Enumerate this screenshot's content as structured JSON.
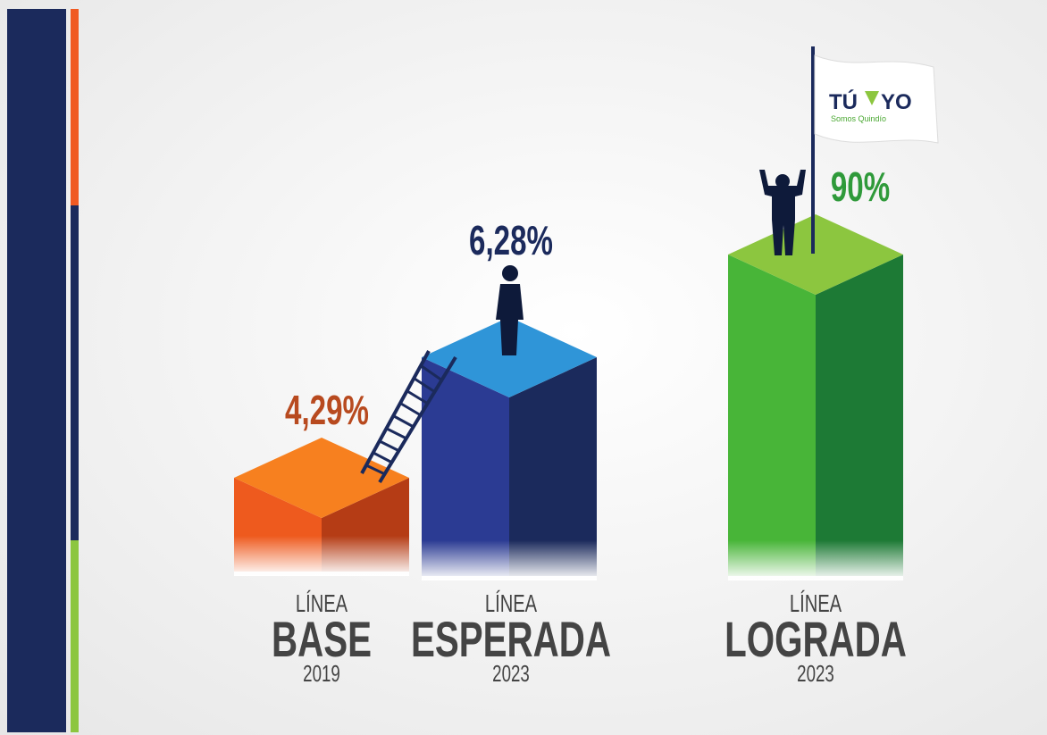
{
  "items": [
    {
      "value": "4,29%",
      "line": "LÍNEA",
      "name": "BASE",
      "year": "2019"
    },
    {
      "value": "6,28%",
      "line": "LÍNEA",
      "name": "ESPERADA",
      "year": "2023"
    },
    {
      "value": "90%",
      "line": "LÍNEA",
      "name": "LOGRADA",
      "year": "2023"
    }
  ],
  "logo": {
    "left": "TÚ",
    "right": "YO",
    "tagline": "Somos Quindío"
  }
}
